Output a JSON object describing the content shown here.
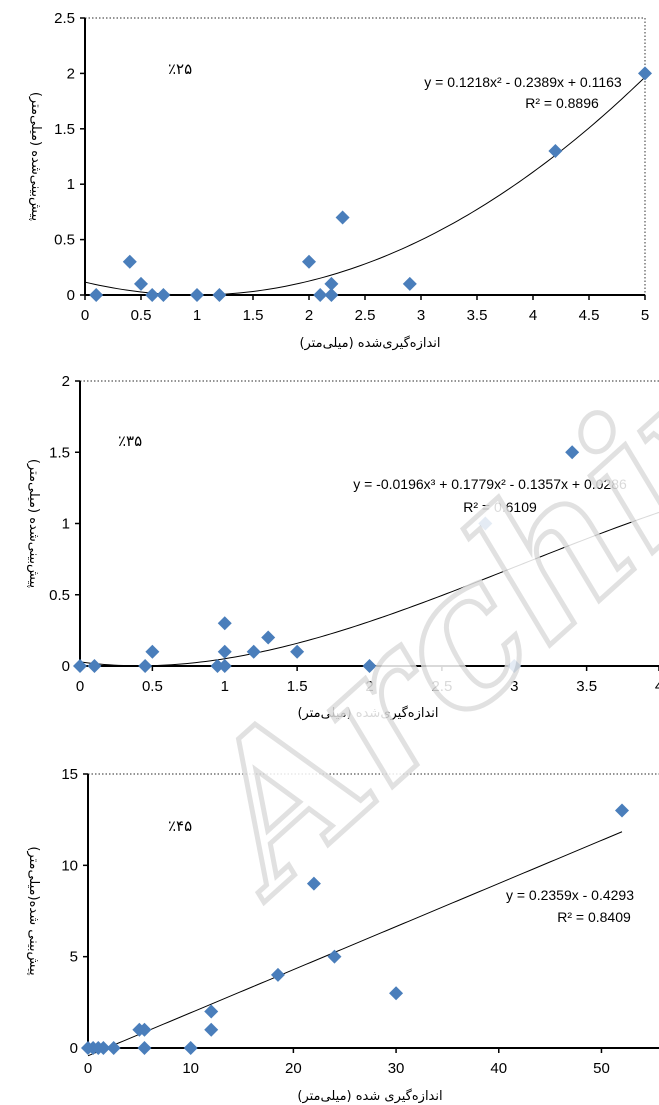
{
  "watermark": "Archive of SID",
  "colors": {
    "marker": "#4a7ebb",
    "axis": "#000000",
    "frame": "#555555",
    "trend": "#000000"
  },
  "chart_data": [
    {
      "type": "scatter",
      "label": "٪۲۵",
      "xlabel": "اندازه‌گیری‌شده (میلی‌متر)",
      "ylabel": "پیش‌بینی‌شده (میلی‌متر)",
      "xlim": [
        0,
        5
      ],
      "ylim": [
        0,
        2.5
      ],
      "xticks": [
        "0",
        "0.5",
        "1",
        "1.5",
        "2",
        "2.5",
        "3",
        "3.5",
        "4",
        "4.5",
        "5"
      ],
      "xtick_values": [
        0,
        0.5,
        1,
        1.5,
        2,
        2.5,
        3,
        3.5,
        4,
        4.5,
        5
      ],
      "yticks": [
        "0",
        "0.5",
        "1",
        "1.5",
        "2",
        "2.5"
      ],
      "ytick_values": [
        0,
        0.5,
        1,
        1.5,
        2,
        2.5
      ],
      "trendline": {
        "type": "poly",
        "coeffs": [
          0.1163,
          -0.2389,
          0.1218
        ],
        "x_range": [
          0,
          5
        ]
      },
      "equation": "y = 0.1218x² - 0.2389x + 0.1163",
      "r2": "R² = 0.8896",
      "points": [
        {
          "x": 0.1,
          "y": 0
        },
        {
          "x": 0.4,
          "y": 0.3
        },
        {
          "x": 0.5,
          "y": 0.1
        },
        {
          "x": 0.6,
          "y": 0
        },
        {
          "x": 0.7,
          "y": 0
        },
        {
          "x": 1.0,
          "y": 0
        },
        {
          "x": 1.2,
          "y": 0
        },
        {
          "x": 2.0,
          "y": 0.3
        },
        {
          "x": 2.1,
          "y": 0
        },
        {
          "x": 2.2,
          "y": 0.1
        },
        {
          "x": 2.2,
          "y": 0
        },
        {
          "x": 2.3,
          "y": 0.7
        },
        {
          "x": 2.9,
          "y": 0.1
        },
        {
          "x": 4.2,
          "y": 1.3
        },
        {
          "x": 5.0,
          "y": 2.0
        }
      ]
    },
    {
      "type": "scatter",
      "label": "٪۳۵",
      "xlabel": "اندازه‌گیری‌شده (میلی‌متر)",
      "ylabel": "پیش‌بینی‌شده (میلی‌متر)",
      "xlim": [
        0,
        4
      ],
      "ylim": [
        0,
        2
      ],
      "xticks": [
        "0",
        "0.5",
        "1",
        "1.5",
        "2",
        "2.5",
        "3",
        "3.5",
        "4"
      ],
      "xtick_values": [
        0,
        0.5,
        1,
        1.5,
        2,
        2.5,
        3,
        3.5,
        4
      ],
      "yticks": [
        "0",
        "0.5",
        "1",
        "1.5",
        "2"
      ],
      "ytick_values": [
        0,
        0.5,
        1,
        1.5,
        2
      ],
      "trendline": {
        "type": "poly",
        "coeffs": [
          0.0286,
          -0.1357,
          0.1779,
          -0.0196
        ],
        "x_range": [
          0,
          4
        ]
      },
      "equation": "y = -0.0196x³ + 0.1779x² - 0.1357x + 0.0286",
      "r2": "R² = 0.6109",
      "points": [
        {
          "x": 0,
          "y": 0
        },
        {
          "x": 0.1,
          "y": 0
        },
        {
          "x": 0.45,
          "y": 0
        },
        {
          "x": 0.5,
          "y": 0.1
        },
        {
          "x": 0.95,
          "y": 0
        },
        {
          "x": 1.0,
          "y": 0
        },
        {
          "x": 1.0,
          "y": 0.1
        },
        {
          "x": 1.0,
          "y": 0.3
        },
        {
          "x": 1.2,
          "y": 0.1
        },
        {
          "x": 1.3,
          "y": 0.2
        },
        {
          "x": 1.5,
          "y": 0.1
        },
        {
          "x": 2.0,
          "y": 0
        },
        {
          "x": 2.8,
          "y": 1.0
        },
        {
          "x": 3.0,
          "y": 0
        },
        {
          "x": 3.4,
          "y": 1.5
        }
      ]
    },
    {
      "type": "scatter",
      "label": "٪۴۵",
      "xlabel": "اندازه‌گیری شده (میلی‌متر)",
      "ylabel": "پیش‌بینی شده(میلی‌متر)",
      "xlim": [
        0,
        50
      ],
      "ylim": [
        0,
        15
      ],
      "xticks": [
        "0",
        "10",
        "20",
        "30",
        "40",
        "50"
      ],
      "xtick_values": [
        0,
        10,
        20,
        30,
        40,
        50
      ],
      "yticks": [
        "0",
        "5",
        "10",
        "15"
      ],
      "ytick_values": [
        0,
        5,
        10,
        15
      ],
      "trendline": {
        "type": "poly",
        "coeffs": [
          -0.4293,
          0.2359
        ],
        "x_range": [
          0,
          52
        ]
      },
      "equation": "y = 0.2359x - 0.4293",
      "r2": "R² = 0.8409",
      "points": [
        {
          "x": 0,
          "y": 0
        },
        {
          "x": 0.5,
          "y": 0
        },
        {
          "x": 1,
          "y": 0
        },
        {
          "x": 1.5,
          "y": 0
        },
        {
          "x": 2.5,
          "y": 0
        },
        {
          "x": 5,
          "y": 1
        },
        {
          "x": 5.5,
          "y": 1
        },
        {
          "x": 5.5,
          "y": 0
        },
        {
          "x": 10,
          "y": 0
        },
        {
          "x": 12,
          "y": 2
        },
        {
          "x": 12,
          "y": 1
        },
        {
          "x": 18.5,
          "y": 4
        },
        {
          "x": 22,
          "y": 9
        },
        {
          "x": 24,
          "y": 5
        },
        {
          "x": 30,
          "y": 3
        },
        {
          "x": 52,
          "y": 13
        }
      ]
    }
  ]
}
